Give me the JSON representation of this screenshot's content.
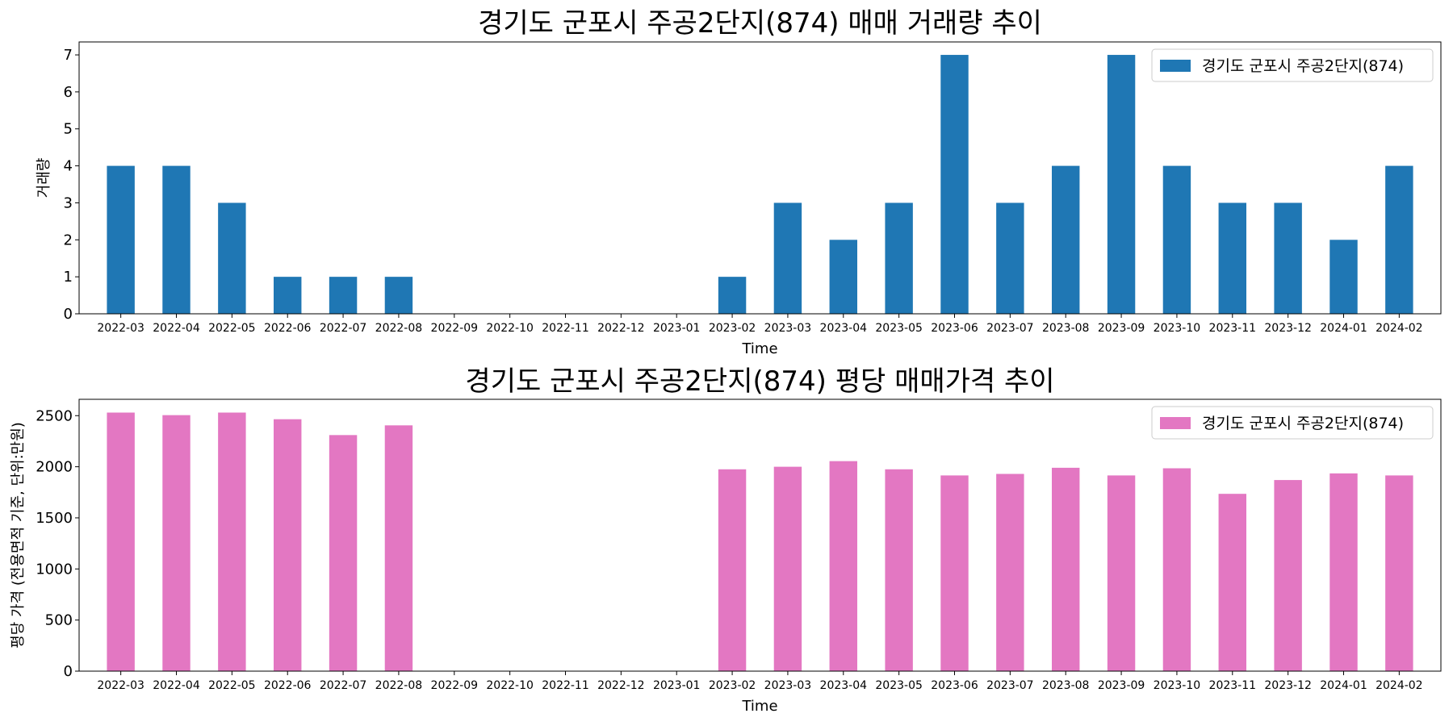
{
  "chart_data": [
    {
      "type": "bar",
      "title": "경기도 군포시 주공2단지(874) 매매 거래량 추이",
      "xlabel": "Time",
      "ylabel": "거래량",
      "ylim": [
        0,
        7.35
      ],
      "yticks": [
        0,
        1,
        2,
        3,
        4,
        5,
        6,
        7
      ],
      "grid": false,
      "legend_position": "top-right",
      "categories": [
        "2022-03",
        "2022-04",
        "2022-05",
        "2022-06",
        "2022-07",
        "2022-08",
        "2022-09",
        "2022-10",
        "2022-11",
        "2022-12",
        "2023-01",
        "2023-02",
        "2023-03",
        "2023-04",
        "2023-05",
        "2023-06",
        "2023-07",
        "2023-08",
        "2023-09",
        "2023-10",
        "2023-11",
        "2023-12",
        "2024-01",
        "2024-02"
      ],
      "series": [
        {
          "name": "경기도 군포시 주공2단지(874)",
          "color": "#1f77b4",
          "values": [
            4,
            4,
            3,
            1,
            1,
            1,
            0,
            0,
            0,
            0,
            0,
            1,
            3,
            2,
            3,
            7,
            3,
            4,
            7,
            4,
            3,
            3,
            2,
            4
          ]
        }
      ]
    },
    {
      "type": "bar",
      "title": "경기도 군포시 주공2단지(874) 평당 매매가격 추이",
      "xlabel": "Time",
      "ylabel": "평당 가격 (전용면적 기준, 단위:만원)",
      "ylim": [
        0,
        2660
      ],
      "yticks": [
        0,
        500,
        1000,
        1500,
        2000,
        2500
      ],
      "grid": false,
      "legend_position": "top-right",
      "categories": [
        "2022-03",
        "2022-04",
        "2022-05",
        "2022-06",
        "2022-07",
        "2022-08",
        "2022-09",
        "2022-10",
        "2022-11",
        "2022-12",
        "2023-01",
        "2023-02",
        "2023-03",
        "2023-04",
        "2023-05",
        "2023-06",
        "2023-07",
        "2023-08",
        "2023-09",
        "2023-10",
        "2023-11",
        "2023-12",
        "2024-01",
        "2024-02"
      ],
      "series": [
        {
          "name": "경기도 군포시 주공2단지(874)",
          "color": "#e377c2",
          "values": [
            2530,
            2505,
            2530,
            2465,
            2310,
            2405,
            0,
            0,
            0,
            0,
            0,
            1975,
            2000,
            2055,
            1975,
            1915,
            1930,
            1990,
            1915,
            1985,
            1735,
            1870,
            1935,
            1915
          ]
        }
      ]
    }
  ]
}
